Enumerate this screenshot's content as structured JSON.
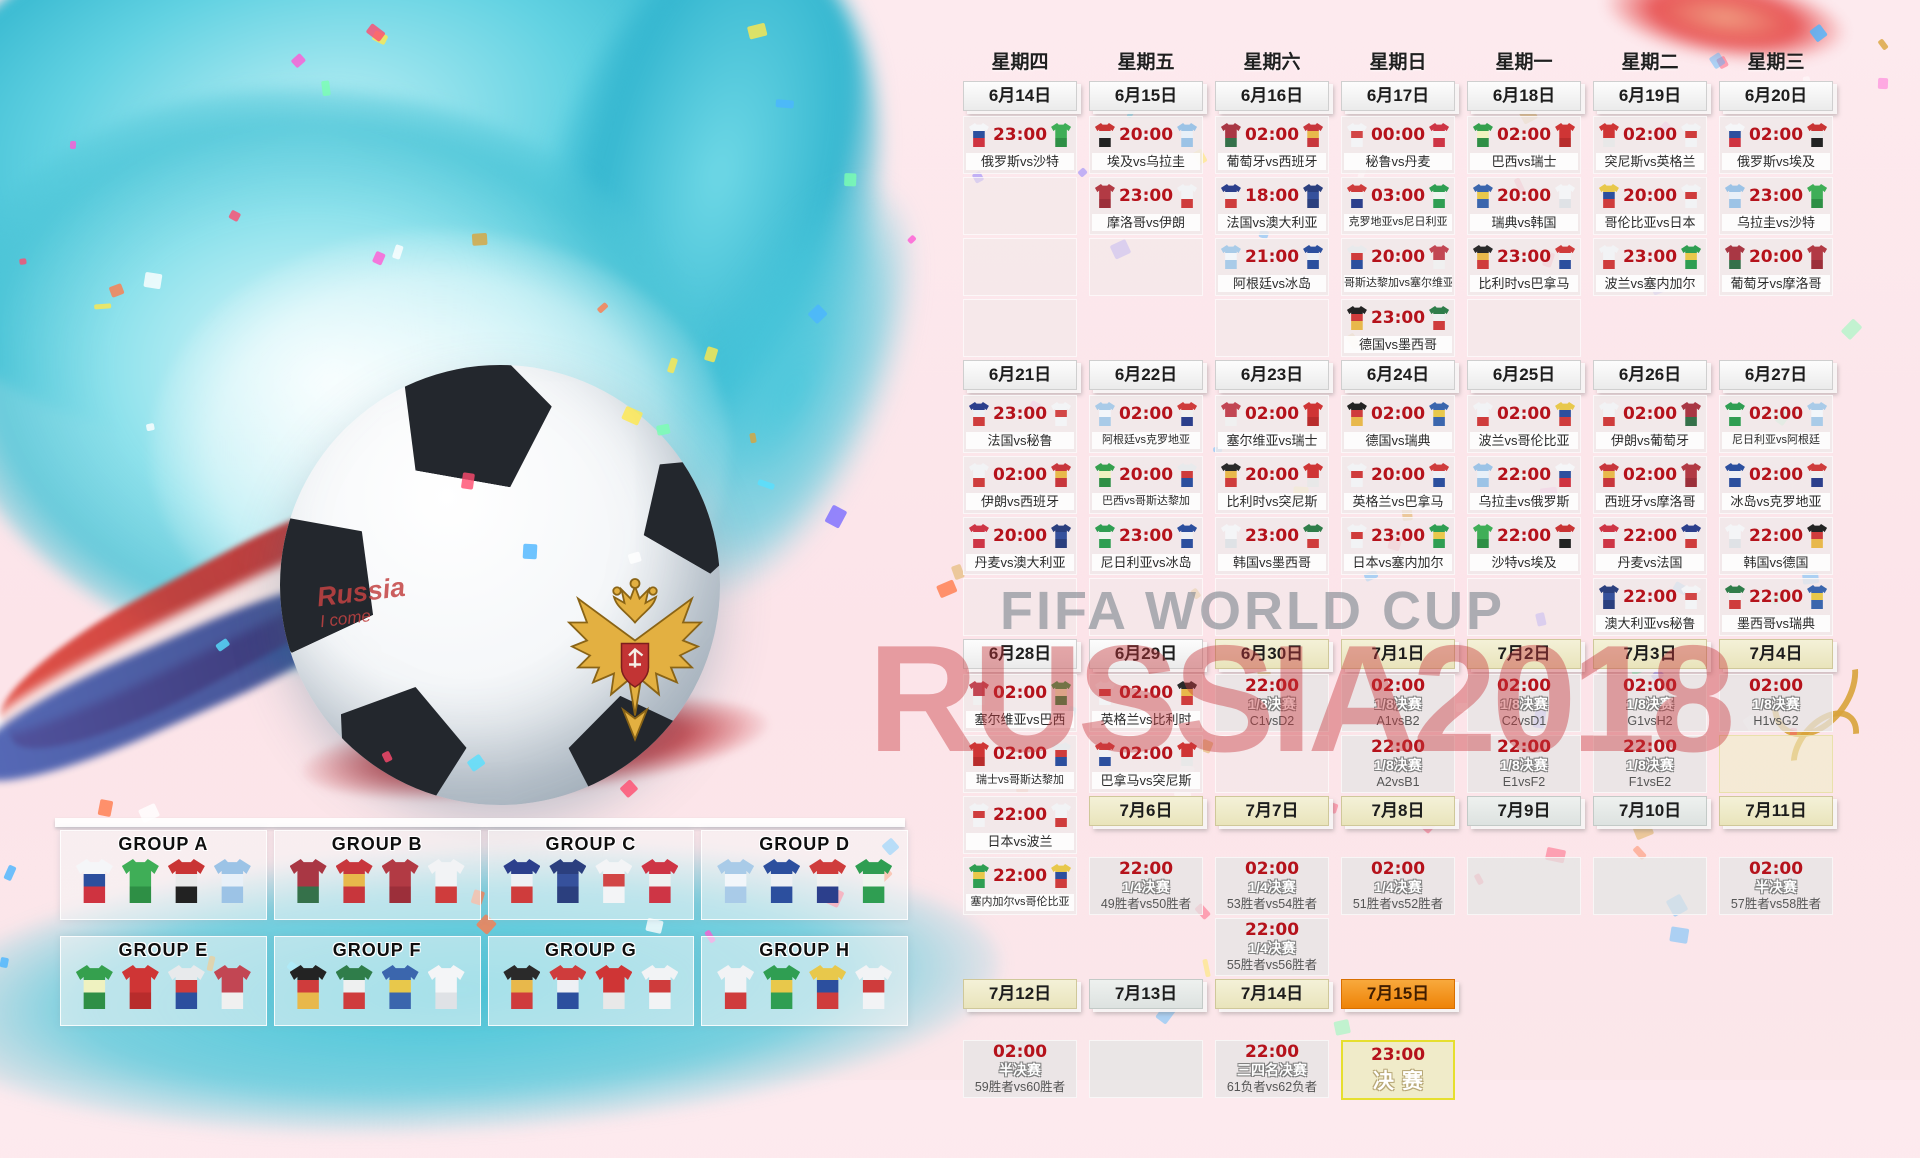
{
  "watermark": {
    "line1": "FIFA WORLD CUP",
    "line2": "RUSSIA2018"
  },
  "scribble": {
    "line1": "Russia",
    "line2": "I come"
  },
  "accent_colors": {
    "time_red": "#b5121b",
    "final_orange": "#ee8307",
    "khaki": "#e9e4bb",
    "splash_teal": "#35b7cd",
    "watermark_red": "#c8373c"
  },
  "weekdays": [
    "星期四",
    "星期五",
    "星期六",
    "星期日",
    "星期一",
    "星期二",
    "星期三"
  ],
  "calendar": {
    "rows": [
      {
        "type": "weekday",
        "cells": [
          "星期四",
          "星期五",
          "星期六",
          "星期日",
          "星期一",
          "星期二",
          "星期三"
        ]
      },
      {
        "type": "dates",
        "cells": [
          {
            "k": "d",
            "l": "6月14日"
          },
          {
            "k": "d",
            "l": "6月15日"
          },
          {
            "k": "d",
            "l": "6月16日"
          },
          {
            "k": "d",
            "l": "6月17日"
          },
          {
            "k": "d",
            "l": "6月18日"
          },
          {
            "k": "d",
            "l": "6月19日"
          },
          {
            "k": "d",
            "l": "6月20日"
          }
        ]
      },
      {
        "type": "matches",
        "cells": [
          {
            "k": "m",
            "t": "23:00",
            "h": "俄罗斯",
            "a": "沙特"
          },
          {
            "k": "m",
            "t": "20:00",
            "h": "埃及",
            "a": "乌拉圭"
          },
          {
            "k": "m",
            "t": "02:00",
            "h": "葡萄牙",
            "a": "西班牙"
          },
          {
            "k": "m",
            "t": "00:00",
            "h": "秘鲁",
            "a": "丹麦"
          },
          {
            "k": "m",
            "t": "02:00",
            "h": "巴西",
            "a": "瑞士"
          },
          {
            "k": "m",
            "t": "02:00",
            "h": "突尼斯",
            "a": "英格兰"
          },
          {
            "k": "m",
            "t": "02:00",
            "h": "俄罗斯",
            "a": "埃及"
          }
        ]
      },
      {
        "type": "matches",
        "cells": [
          {
            "k": "e"
          },
          {
            "k": "m",
            "t": "23:00",
            "h": "摩洛哥",
            "a": "伊朗"
          },
          {
            "k": "m",
            "t": "18:00",
            "h": "法国",
            "a": "澳大利亚"
          },
          {
            "k": "m",
            "t": "03:00",
            "h": "克罗地亚",
            "a": "尼日利亚"
          },
          {
            "k": "m",
            "t": "20:00",
            "h": "瑞典",
            "a": "韩国"
          },
          {
            "k": "m",
            "t": "20:00",
            "h": "哥伦比亚",
            "a": "日本"
          },
          {
            "k": "m",
            "t": "23:00",
            "h": "乌拉圭",
            "a": "沙特"
          }
        ]
      },
      {
        "type": "matches",
        "cells": [
          {
            "k": "e"
          },
          {
            "k": "e"
          },
          {
            "k": "m",
            "t": "21:00",
            "h": "阿根廷",
            "a": "冰岛"
          },
          {
            "k": "m",
            "t": "20:00",
            "h": "哥斯达黎加",
            "a": "塞尔维亚"
          },
          {
            "k": "m",
            "t": "23:00",
            "h": "比利时",
            "a": "巴拿马"
          },
          {
            "k": "m",
            "t": "23:00",
            "h": "波兰",
            "a": "塞内加尔"
          },
          {
            "k": "m",
            "t": "20:00",
            "h": "葡萄牙",
            "a": "摩洛哥"
          }
        ]
      },
      {
        "type": "matches",
        "cells": [
          {
            "k": "e"
          },
          null,
          {
            "k": "e"
          },
          {
            "k": "m",
            "t": "23:00",
            "h": "德国",
            "a": "墨西哥"
          },
          {
            "k": "e"
          },
          null,
          null
        ]
      },
      {
        "type": "dates",
        "cells": [
          {
            "k": "d",
            "l": "6月21日"
          },
          {
            "k": "d",
            "l": "6月22日"
          },
          {
            "k": "d",
            "l": "6月23日"
          },
          {
            "k": "d",
            "l": "6月24日"
          },
          {
            "k": "d",
            "l": "6月25日"
          },
          {
            "k": "d",
            "l": "6月26日"
          },
          {
            "k": "d",
            "l": "6月27日"
          }
        ]
      },
      {
        "type": "matches",
        "cells": [
          {
            "k": "m",
            "t": "23:00",
            "h": "法国",
            "a": "秘鲁"
          },
          {
            "k": "m",
            "t": "02:00",
            "h": "阿根廷",
            "a": "克罗地亚"
          },
          {
            "k": "m",
            "t": "02:00",
            "h": "塞尔维亚",
            "a": "瑞士"
          },
          {
            "k": "m",
            "t": "02:00",
            "h": "德国",
            "a": "瑞典"
          },
          {
            "k": "m",
            "t": "02:00",
            "h": "波兰",
            "a": "哥伦比亚"
          },
          {
            "k": "m",
            "t": "02:00",
            "h": "伊朗",
            "a": "葡萄牙"
          },
          {
            "k": "m",
            "t": "02:00",
            "h": "尼日利亚",
            "a": "阿根廷"
          }
        ]
      },
      {
        "type": "matches",
        "cells": [
          {
            "k": "m",
            "t": "02:00",
            "h": "伊朗",
            "a": "西班牙"
          },
          {
            "k": "m",
            "t": "20:00",
            "h": "巴西",
            "a": "哥斯达黎加"
          },
          {
            "k": "m",
            "t": "20:00",
            "h": "比利时",
            "a": "突尼斯"
          },
          {
            "k": "m",
            "t": "20:00",
            "h": "英格兰",
            "a": "巴拿马"
          },
          {
            "k": "m",
            "t": "22:00",
            "h": "乌拉圭",
            "a": "俄罗斯"
          },
          {
            "k": "m",
            "t": "02:00",
            "h": "西班牙",
            "a": "摩洛哥"
          },
          {
            "k": "m",
            "t": "02:00",
            "h": "冰岛",
            "a": "克罗地亚"
          }
        ]
      },
      {
        "type": "matches",
        "cells": [
          {
            "k": "m",
            "t": "20:00",
            "h": "丹麦",
            "a": "澳大利亚"
          },
          {
            "k": "m",
            "t": "23:00",
            "h": "尼日利亚",
            "a": "冰岛"
          },
          {
            "k": "m",
            "t": "23:00",
            "h": "韩国",
            "a": "墨西哥"
          },
          {
            "k": "m",
            "t": "23:00",
            "h": "日本",
            "a": "塞内加尔"
          },
          {
            "k": "m",
            "t": "22:00",
            "h": "沙特",
            "a": "埃及"
          },
          {
            "k": "m",
            "t": "22:00",
            "h": "丹麦",
            "a": "法国"
          },
          {
            "k": "m",
            "t": "22:00",
            "h": "韩国",
            "a": "德国"
          }
        ]
      },
      {
        "type": "matches",
        "cells": [
          {
            "k": "e"
          },
          {
            "k": "e"
          },
          {
            "k": "e"
          },
          {
            "k": "e"
          },
          {
            "k": "e"
          },
          {
            "k": "m",
            "t": "22:00",
            "h": "澳大利亚",
            "a": "秘鲁"
          },
          {
            "k": "m",
            "t": "22:00",
            "h": "墨西哥",
            "a": "瑞典"
          }
        ]
      },
      {
        "type": "dates",
        "cells": [
          {
            "k": "d",
            "l": "6月28日"
          },
          {
            "k": "d",
            "l": "6月29日"
          },
          {
            "k": "d",
            "l": "6月30日",
            "v": "khaki"
          },
          {
            "k": "d",
            "l": "7月1日",
            "v": "khaki"
          },
          {
            "k": "d",
            "l": "7月2日",
            "v": "khaki"
          },
          {
            "k": "d",
            "l": "7月3日",
            "v": "khaki"
          },
          {
            "k": "d",
            "l": "7月4日",
            "v": "khaki"
          }
        ]
      },
      {
        "type": "matches",
        "cells": [
          {
            "k": "m",
            "t": "02:00",
            "h": "塞尔维亚",
            "a": "巴西"
          },
          {
            "k": "m",
            "t": "02:00",
            "h": "英格兰",
            "a": "比利时"
          },
          {
            "k": "ko",
            "t": "22:00",
            "s": "1/8决赛",
            "v": "C1vsD2"
          },
          {
            "k": "ko",
            "t": "02:00",
            "s": "1/8决赛",
            "v": "A1vsB2"
          },
          {
            "k": "ko",
            "t": "02:00",
            "s": "1/8决赛",
            "v": "C2vsD1"
          },
          {
            "k": "ko",
            "t": "02:00",
            "s": "1/8决赛",
            "v": "G1vsH2"
          },
          {
            "k": "ko",
            "t": "02:00",
            "s": "1/8决赛",
            "v": "H1vsG2"
          }
        ]
      },
      {
        "type": "matches",
        "cells": [
          {
            "k": "m",
            "t": "02:00",
            "h": "瑞士",
            "a": "哥斯达黎加"
          },
          {
            "k": "m",
            "t": "02:00",
            "h": "巴拿马",
            "a": "突尼斯"
          },
          {
            "k": "e"
          },
          {
            "k": "ko",
            "t": "22:00",
            "s": "1/8决赛",
            "v": "A2vsB1"
          },
          {
            "k": "ko",
            "t": "22:00",
            "s": "1/8决赛",
            "v": "E1vsF2"
          },
          {
            "k": "ko",
            "t": "22:00",
            "s": "1/8决赛",
            "v": "F1vsE2"
          },
          {
            "k": "e",
            "v": "khaki"
          }
        ]
      },
      {
        "type": "matches",
        "cells": [
          {
            "k": "m",
            "t": "22:00",
            "h": "日本",
            "a": "波兰"
          },
          {
            "k": "d",
            "l": "7月6日",
            "v": "khaki"
          },
          {
            "k": "d",
            "l": "7月7日",
            "v": "khaki"
          },
          {
            "k": "d",
            "l": "7月8日",
            "v": "khaki"
          },
          {
            "k": "d",
            "l": "7月9日",
            "v": "grey"
          },
          {
            "k": "d",
            "l": "7月10日",
            "v": "grey"
          },
          {
            "k": "d",
            "l": "7月11日",
            "v": "khaki"
          }
        ]
      },
      {
        "type": "matches",
        "cells": [
          {
            "k": "m",
            "t": "22:00",
            "h": "塞内加尔",
            "a": "哥伦比亚"
          },
          {
            "k": "ko",
            "t": "22:00",
            "s": "1/4决赛",
            "v": "49胜者vs50胜者"
          },
          {
            "k": "ko",
            "t": "02:00",
            "s": "1/4决赛",
            "v": "53胜者vs54胜者"
          },
          {
            "k": "ko",
            "t": "02:00",
            "s": "1/4决赛",
            "v": "51胜者vs52胜者"
          },
          {
            "k": "e",
            "v": "grey"
          },
          {
            "k": "e",
            "v": "grey"
          },
          {
            "k": "ko",
            "t": "02:00",
            "s": "半决赛",
            "v": "57胜者vs58胜者"
          }
        ]
      },
      {
        "type": "matches",
        "cells": [
          null,
          null,
          {
            "k": "ko",
            "t": "22:00",
            "s": "1/4决赛",
            "v": "55胜者vs56胜者"
          },
          null,
          null,
          null,
          null
        ]
      },
      {
        "type": "dates",
        "cells": [
          {
            "k": "d",
            "l": "7月12日",
            "v": "khaki"
          },
          {
            "k": "d",
            "l": "7月13日",
            "v": "grey"
          },
          {
            "k": "d",
            "l": "7月14日",
            "v": "khaki"
          },
          {
            "k": "d",
            "l": "7月15日",
            "v": "orange"
          },
          null,
          null,
          null
        ]
      },
      {
        "type": "matches",
        "cells": [
          {
            "k": "ko",
            "t": "02:00",
            "s": "半决赛",
            "v": "59胜者vs60胜者"
          },
          {
            "k": "e",
            "v": "grey"
          },
          {
            "k": "ko",
            "t": "22:00",
            "s": "三四名决赛",
            "v": "61负者vs62负者"
          },
          {
            "k": "f",
            "t": "23:00",
            "l": "决赛"
          },
          null,
          null,
          null
        ]
      }
    ]
  },
  "groups": [
    {
      "name": "GROUP A",
      "teams": [
        "俄罗斯",
        "沙特",
        "埃及",
        "乌拉圭"
      ]
    },
    {
      "name": "GROUP B",
      "teams": [
        "葡萄牙",
        "西班牙",
        "摩洛哥",
        "伊朗"
      ]
    },
    {
      "name": "GROUP C",
      "teams": [
        "法国",
        "澳大利亚",
        "秘鲁",
        "丹麦"
      ]
    },
    {
      "name": "GROUP D",
      "teams": [
        "阿根廷",
        "冰岛",
        "克罗地亚",
        "尼日利亚"
      ]
    },
    {
      "name": "GROUP E",
      "teams": [
        "巴西",
        "瑞士",
        "哥斯达黎加",
        "塞尔维亚"
      ]
    },
    {
      "name": "GROUP F",
      "teams": [
        "德国",
        "墨西哥",
        "瑞典",
        "韩国"
      ]
    },
    {
      "name": "GROUP G",
      "teams": [
        "比利时",
        "巴拿马",
        "突尼斯",
        "英格兰"
      ]
    },
    {
      "name": "GROUP H",
      "teams": [
        "波兰",
        "塞内加尔",
        "哥伦比亚",
        "日本"
      ]
    }
  ],
  "team_jerseys": {
    "俄罗斯": [
      "#f5f6f8",
      "#2c4f9e",
      "#cf3340"
    ],
    "沙特": [
      "#3fae57",
      "#3fae57",
      "#2e8f45"
    ],
    "埃及": [
      "#c93434",
      "#e9e9e9",
      "#222222"
    ],
    "乌拉圭": [
      "#9cc3e6",
      "#e8f0f8",
      "#9cc3e6"
    ],
    "葡萄牙": [
      "#a93744",
      "#a93744",
      "#35714a"
    ],
    "西班牙": [
      "#c8363c",
      "#e8b84b",
      "#c8363c"
    ],
    "摩洛哥": [
      "#b23a44",
      "#b23a44",
      "#9c2f3a"
    ],
    "伊朗": [
      "#f2f3f5",
      "#f2f3f5",
      "#cf3c3c"
    ],
    "法国": [
      "#2c3f8c",
      "#eef0f4",
      "#cf3c3c"
    ],
    "澳大利亚": [
      "#2b3f7e",
      "#36519c",
      "#2b3f7e"
    ],
    "秘鲁": [
      "#f3f4f6",
      "#d24646",
      "#f3f4f6"
    ],
    "丹麦": [
      "#ce3545",
      "#f0f0f0",
      "#ce3545"
    ],
    "阿根廷": [
      "#a9cbe8",
      "#f2f6fa",
      "#a9cbe8"
    ],
    "冰岛": [
      "#2c4f9e",
      "#eef0f4",
      "#2c4f9e"
    ],
    "克罗地亚": [
      "#cf3c3c",
      "#f0f0f0",
      "#2c3f8c"
    ],
    "尼日利亚": [
      "#2f9e52",
      "#eef5ee",
      "#2f9e52"
    ],
    "巴西": [
      "#35a04e",
      "#eff2c0",
      "#2f8f46"
    ],
    "瑞士": [
      "#cf3535",
      "#cf3535",
      "#b82c2c"
    ],
    "哥斯达黎加": [
      "#e8eaec",
      "#cf3c3c",
      "#2c4f9e"
    ],
    "塞尔维亚": [
      "#c24653",
      "#c24653",
      "#f0f0f0"
    ],
    "德国": [
      "#232323",
      "#cf3c3c",
      "#e8b84b"
    ],
    "墨西哥": [
      "#2f7d4a",
      "#eef0f0",
      "#cf3c3c"
    ],
    "瑞典": [
      "#3b66ad",
      "#e8c84b",
      "#3b66ad"
    ],
    "韩国": [
      "#f4f5f7",
      "#f4f5f7",
      "#dfe2e6"
    ],
    "比利时": [
      "#2a2a2a",
      "#e8b84b",
      "#cf3c3c"
    ],
    "巴拿马": [
      "#cf3c3c",
      "#eef0f4",
      "#2c4f9e"
    ],
    "突尼斯": [
      "#cf3535",
      "#cf3535",
      "#e8e8e8"
    ],
    "英格兰": [
      "#f2f3f5",
      "#cf3c3c",
      "#f2f3f5"
    ],
    "波兰": [
      "#f2f3f5",
      "#f2f3f5",
      "#cf3c3c"
    ],
    "塞内加尔": [
      "#2f9e52",
      "#e8c84b",
      "#2f9e52"
    ],
    "哥伦比亚": [
      "#e8c84b",
      "#2c4f9e",
      "#cf3c3c"
    ],
    "日本": [
      "#f2f3f5",
      "#cf3c3c",
      "#f2f3f5"
    ]
  },
  "confetti_colors": [
    "#ff5ad5",
    "#ffe84b",
    "#58e0ff",
    "#7b6cff",
    "#ff7b4b",
    "#7bffb0",
    "#ff4b6e",
    "#4bb5ff",
    "#d9a43b",
    "#ffffff"
  ]
}
